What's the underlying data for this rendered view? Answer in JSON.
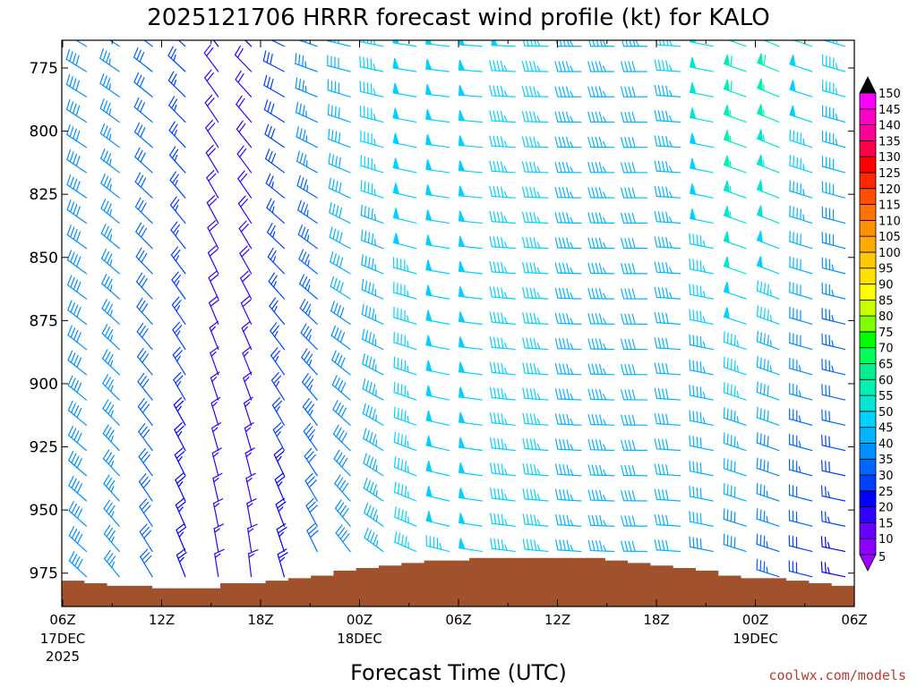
{
  "chart_data": {
    "type": "wind_barb_profile",
    "title": "2025121706 HRRR forecast wind profile (kt) for KALO",
    "xlabel": "Forecast Time (UTC)",
    "credit": "coolwx.com/models",
    "x_ticks": [
      {
        "hour": 0,
        "label": "06Z",
        "sub": "17DEC",
        "sub2": "2025"
      },
      {
        "hour": 6,
        "label": "12Z",
        "sub": "",
        "sub2": ""
      },
      {
        "hour": 12,
        "label": "18Z",
        "sub": "",
        "sub2": ""
      },
      {
        "hour": 18,
        "label": "00Z",
        "sub": "18DEC",
        "sub2": ""
      },
      {
        "hour": 24,
        "label": "06Z",
        "sub": "",
        "sub2": ""
      },
      {
        "hour": 30,
        "label": "12Z",
        "sub": "",
        "sub2": ""
      },
      {
        "hour": 36,
        "label": "18Z",
        "sub": "",
        "sub2": ""
      },
      {
        "hour": 42,
        "label": "00Z",
        "sub": "19DEC",
        "sub2": ""
      },
      {
        "hour": 48,
        "label": "06Z",
        "sub": "",
        "sub2": ""
      }
    ],
    "xlim_hours": [
      0,
      48
    ],
    "y_ticks": [
      "775",
      "800",
      "825",
      "850",
      "875",
      "900",
      "925",
      "950",
      "975"
    ],
    "ylim_hpa": [
      765,
      988
    ],
    "y_unit": "hPa",
    "barb_levels_hpa": [
      765,
      775,
      785,
      795,
      805,
      815,
      825,
      835,
      845,
      855,
      865,
      875,
      885,
      895,
      905,
      915,
      925,
      935,
      945,
      955,
      965,
      975,
      985
    ],
    "hour_step": 2,
    "terrain_color": "#a0522d",
    "terrain_surface_hpa": [
      978,
      979,
      980,
      980,
      981,
      981,
      981,
      979,
      979,
      978,
      977,
      976,
      974,
      973,
      972,
      971,
      970,
      970,
      969,
      969,
      969,
      969,
      969,
      969,
      970,
      971,
      972,
      973,
      974,
      976,
      977,
      977,
      978,
      979,
      980
    ],
    "keyframes": {
      "hours": [
        0,
        4,
        8,
        10,
        12,
        16,
        20,
        24,
        30,
        36,
        40,
        42,
        44,
        48
      ],
      "dir_upper": [
        300,
        305,
        315,
        330,
        300,
        285,
        280,
        275,
        270,
        270,
        285,
        295,
        290,
        285
      ],
      "dir_lower": [
        310,
        325,
        345,
        0,
        350,
        335,
        300,
        280,
        275,
        270,
        285,
        290,
        285,
        280
      ],
      "speed_upper_kt": [
        40,
        35,
        25,
        15,
        25,
        40,
        48,
        50,
        45,
        42,
        55,
        65,
        52,
        45
      ],
      "speed_lower_kt": [
        40,
        35,
        20,
        10,
        20,
        35,
        45,
        48,
        45,
        40,
        38,
        35,
        30,
        20
      ]
    },
    "colorbar": {
      "values": [
        5,
        10,
        15,
        20,
        25,
        30,
        35,
        40,
        45,
        50,
        55,
        60,
        65,
        70,
        75,
        80,
        85,
        90,
        95,
        100,
        105,
        110,
        115,
        120,
        125,
        130,
        135,
        140,
        145,
        150
      ],
      "colors": [
        "#8b00ff",
        "#6a00ff",
        "#3200ff",
        "#0000ff",
        "#0040ff",
        "#0066ff",
        "#0090ff",
        "#00b4ff",
        "#00d2ff",
        "#00e6d2",
        "#00f0b4",
        "#00f090",
        "#00ff5a",
        "#00ff00",
        "#7dff00",
        "#c8ff00",
        "#ffff00",
        "#ffe100",
        "#ffc800",
        "#ffaa00",
        "#ff9000",
        "#ff7300",
        "#ff5000",
        "#ff2800",
        "#ff0000",
        "#ff004b",
        "#ff0096",
        "#ff00c8",
        "#ff00ff",
        "#ff3cff"
      ],
      "tri_low_color": "#9d00ff",
      "tri_high_color": "#000000"
    }
  }
}
